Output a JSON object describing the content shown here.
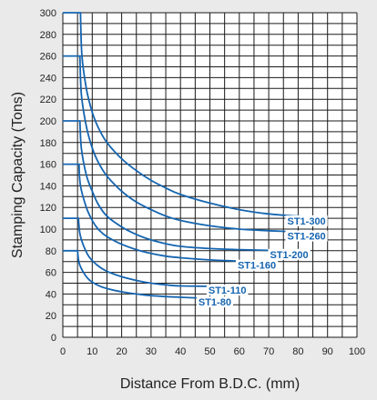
{
  "chart_data": {
    "type": "line",
    "xlabel": "Distance From B.D.C. (mm)",
    "ylabel": "Stamping Capacity (Tons)",
    "xlim": [
      0,
      100
    ],
    "ylim": [
      0,
      300
    ],
    "x_ticks": [
      "0",
      "10",
      "20",
      "30",
      "40",
      "50",
      "60",
      "70",
      "80",
      "90",
      "100"
    ],
    "y_ticks": [
      "0",
      "20",
      "40",
      "60",
      "80",
      "100",
      "120",
      "140",
      "160",
      "180",
      "200",
      "220",
      "240",
      "260",
      "280",
      "300"
    ],
    "grid": true,
    "line_color": "#1565b0",
    "series": [
      {
        "name": "ST1-300",
        "rated": 300,
        "flat_end": 6,
        "end_x": 90,
        "end_y": 111,
        "points": [
          [
            0,
            300
          ],
          [
            6,
            300
          ],
          [
            6.5,
            260
          ],
          [
            8,
            230
          ],
          [
            10,
            208
          ],
          [
            12,
            194
          ],
          [
            15,
            180
          ],
          [
            20,
            165
          ],
          [
            25,
            154
          ],
          [
            30,
            145
          ],
          [
            35,
            138
          ],
          [
            40,
            132
          ],
          [
            50,
            124
          ],
          [
            60,
            118
          ],
          [
            70,
            114
          ],
          [
            80,
            112
          ],
          [
            90,
            111
          ]
        ]
      },
      {
        "name": "ST1-260",
        "rated": 260,
        "flat_end": 5.8,
        "end_x": 90,
        "end_y": 97,
        "points": [
          [
            0,
            260
          ],
          [
            5.8,
            260
          ],
          [
            6.3,
            225
          ],
          [
            8,
            195
          ],
          [
            10,
            175
          ],
          [
            12,
            162
          ],
          [
            15,
            149
          ],
          [
            20,
            135
          ],
          [
            25,
            125
          ],
          [
            30,
            118
          ],
          [
            35,
            112
          ],
          [
            40,
            108
          ],
          [
            50,
            103
          ],
          [
            60,
            100
          ],
          [
            70,
            98.5
          ],
          [
            80,
            97.5
          ],
          [
            90,
            97
          ]
        ]
      },
      {
        "name": "ST1-200",
        "rated": 200,
        "flat_end": 5.8,
        "end_x": 75,
        "end_y": 80,
        "points": [
          [
            0,
            200
          ],
          [
            5.8,
            200
          ],
          [
            6.3,
            175
          ],
          [
            8,
            150
          ],
          [
            10,
            135
          ],
          [
            12,
            123
          ],
          [
            15,
            112
          ],
          [
            20,
            102
          ],
          [
            25,
            95
          ],
          [
            30,
            90
          ],
          [
            35,
            86.5
          ],
          [
            40,
            84
          ],
          [
            50,
            82
          ],
          [
            60,
            81
          ],
          [
            75,
            80
          ]
        ]
      },
      {
        "name": "ST1-160",
        "rated": 160,
        "flat_end": 5.5,
        "end_x": 64,
        "end_y": 70,
        "points": [
          [
            0,
            160
          ],
          [
            5.5,
            160
          ],
          [
            6,
            140
          ],
          [
            8,
            120
          ],
          [
            10,
            108
          ],
          [
            12,
            100
          ],
          [
            15,
            93
          ],
          [
            20,
            86
          ],
          [
            25,
            81
          ],
          [
            30,
            77.5
          ],
          [
            35,
            75
          ],
          [
            40,
            73.5
          ],
          [
            50,
            71.5
          ],
          [
            64,
            70
          ]
        ]
      },
      {
        "name": "ST1-110",
        "rated": 110,
        "flat_end": 5.3,
        "end_x": 54,
        "end_y": 47,
        "points": [
          [
            0,
            110
          ],
          [
            5.3,
            110
          ],
          [
            5.8,
            96
          ],
          [
            7,
            85
          ],
          [
            9,
            74
          ],
          [
            12,
            66
          ],
          [
            15,
            61
          ],
          [
            20,
            56
          ],
          [
            25,
            52.5
          ],
          [
            30,
            50
          ],
          [
            35,
            48.5
          ],
          [
            40,
            47.5
          ],
          [
            54,
            47
          ]
        ]
      },
      {
        "name": "ST1-80",
        "rated": 80,
        "flat_end": 5,
        "end_x": 50,
        "end_y": 36,
        "points": [
          [
            0,
            80
          ],
          [
            5,
            80
          ],
          [
            5.5,
            69
          ],
          [
            7,
            60
          ],
          [
            9,
            53
          ],
          [
            12,
            48
          ],
          [
            15,
            45
          ],
          [
            20,
            42
          ],
          [
            25,
            40
          ],
          [
            30,
            38.5
          ],
          [
            40,
            37
          ],
          [
            50,
            36
          ]
        ]
      }
    ]
  }
}
